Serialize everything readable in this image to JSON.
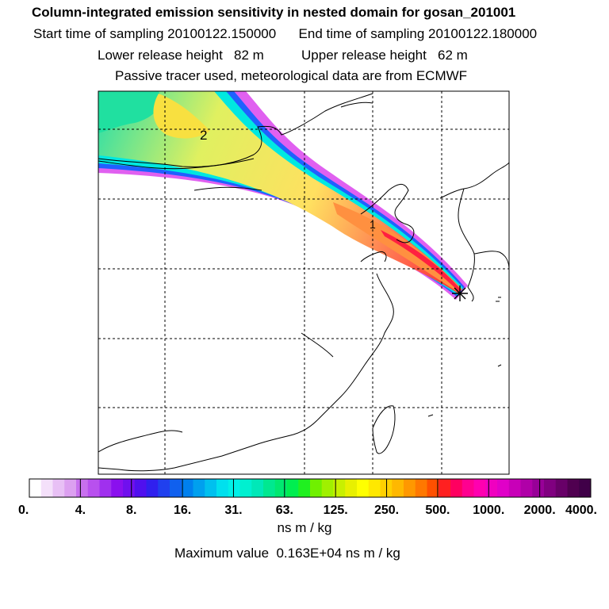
{
  "header": {
    "title": "Column-integrated emission sensitivity in nested domain for gosan_201001",
    "line2": "Start time of sampling 20100122.150000      End time of sampling 20100122.180000",
    "line3": "Lower release height   82 m          Upper release height   62 m",
    "line4": "Passive tracer used, meteorological data are from ECMWF"
  },
  "map": {
    "contour_labels": [
      "2",
      "1"
    ],
    "release_marker": "star-marker"
  },
  "colorbar": {
    "tick_labels": [
      "0.",
      "4.",
      "8.",
      "16.",
      "31.",
      "63.",
      "125.",
      "250.",
      "500.",
      "1000.",
      "2000.",
      "4000."
    ],
    "colors": [
      "#ffffff",
      "#f4e0fa",
      "#e8c0f5",
      "#dca0f0",
      "#c870ee",
      "#b850ee",
      "#a030ee",
      "#8a10ee",
      "#7010ee",
      "#5010ee",
      "#3020ee",
      "#2040ee",
      "#1060ee",
      "#0080ee",
      "#00a0ee",
      "#00c0ee",
      "#00e0ee",
      "#00f0e8",
      "#00f0d0",
      "#00e8b8",
      "#00e890",
      "#00e870",
      "#00ee50",
      "#20f020",
      "#70f000",
      "#a0f000",
      "#c8f000",
      "#e8f000",
      "#ffff00",
      "#ffe800",
      "#ffd000",
      "#ffb800",
      "#ff9800",
      "#ff7800",
      "#ff5000",
      "#ff2020",
      "#ff0060",
      "#ff0090",
      "#ff00b0",
      "#f000c0",
      "#e000c8",
      "#c800b8",
      "#b000a8",
      "#980098",
      "#800080",
      "#680068",
      "#500050",
      "#400048"
    ],
    "units": "ns m / kg"
  },
  "footer": {
    "max_value": "Maximum value  0.163E+04 ns m / kg"
  }
}
